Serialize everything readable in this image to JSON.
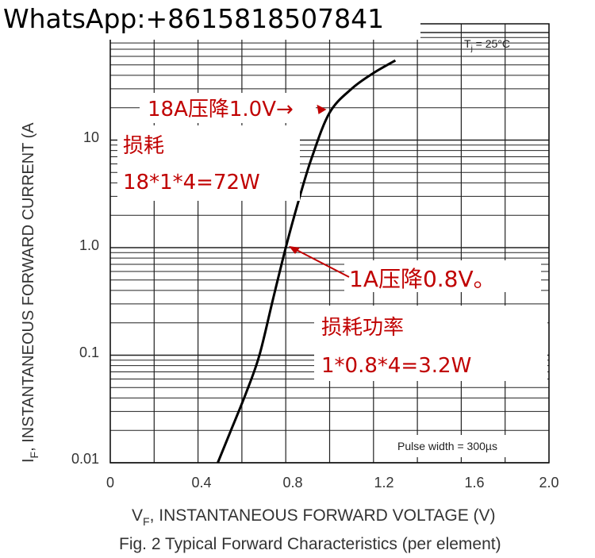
{
  "watermark": "WhatsApp:+8615818507841",
  "chart_data": {
    "type": "line",
    "xlabel": "V",
    "xlabel_sub": "F",
    "xlabel_rest": ", INSTANTANEOUS FORWARD VOLTAGE (V)",
    "ylabel": "I",
    "ylabel_sub": "F",
    "ylabel_rest": ", INSTANTANEOUS FORWARD CURRENT (A",
    "caption": "Fig. 2  Typical Forward Characteristics (per element)",
    "x_ticks": [
      "0",
      "0.4",
      "0.8",
      "1.2",
      "1.6",
      "2.0"
    ],
    "x_tick_values": [
      0,
      0.4,
      0.8,
      1.2,
      1.6,
      2.0
    ],
    "y_ticks": [
      "0.01",
      "0.1",
      "1.0",
      "10"
    ],
    "y_tick_values": [
      0.01,
      0.1,
      1.0,
      10
    ],
    "xlim": [
      0,
      2.0
    ],
    "ylim": [
      0.01,
      60
    ],
    "y_scale": "log",
    "grid": true,
    "condition_label": {
      "main": "T",
      "sub": "j",
      "rest": " = 25°C"
    },
    "pulse_label": "Pulse width = 300µs",
    "series": [
      {
        "color": "#000000",
        "x": [
          0.49,
          0.55,
          0.62,
          0.68,
          0.74,
          0.8,
          0.86,
          0.92,
          1.0,
          1.1,
          1.2,
          1.3
        ],
        "y": [
          0.01,
          0.02,
          0.045,
          0.1,
          0.32,
          1.0,
          2.8,
          7.0,
          18,
          30,
          42,
          55
        ]
      }
    ],
    "annotations": [
      {
        "lines": [
          "18A压降1.0V→"
        ],
        "x": 1.0,
        "y": 18
      },
      {
        "lines": [
          "损耗",
          "18*1*4=72W"
        ]
      },
      {
        "lines": [
          "1A压降0.8V。"
        ],
        "x": 0.8,
        "y": 1.0
      },
      {
        "lines": [
          "损耗功率",
          "1*0.8*4=3.2W"
        ]
      }
    ],
    "accent_color": "#c00000"
  }
}
